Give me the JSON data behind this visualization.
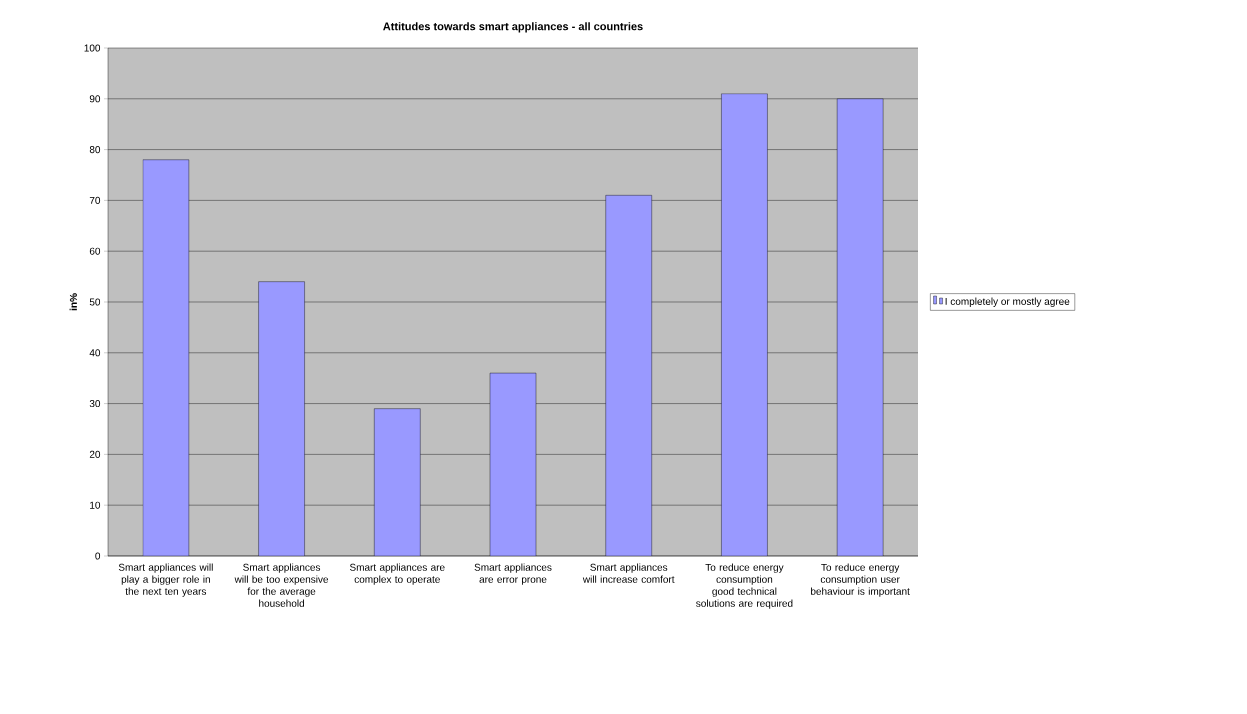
{
  "chart_data": {
    "type": "bar",
    "title": "Attitudes towards smart appliances - all countries",
    "ylabel": "in%",
    "categories": [
      "Smart appliances will play a bigger role in the next ten years",
      "Smart appliances will be too expensive for the average household",
      "Smart appliances are complex to operate",
      "Smart appliances are error prone",
      "Smart appliances will increase comfort",
      "To reduce energy consumption good technical solutions are required",
      "To reduce energy consumption user behaviour is important"
    ],
    "series": [
      {
        "name": "I completely or mostly agree",
        "color": "#9999ff",
        "values": [
          78,
          54,
          29,
          36,
          71,
          91,
          90
        ]
      }
    ],
    "ylim": [
      0,
      100
    ],
    "yticks": [
      0,
      10,
      20,
      30,
      40,
      50,
      60,
      70,
      80,
      90,
      100
    ],
    "grid": "y",
    "legend": "right"
  }
}
